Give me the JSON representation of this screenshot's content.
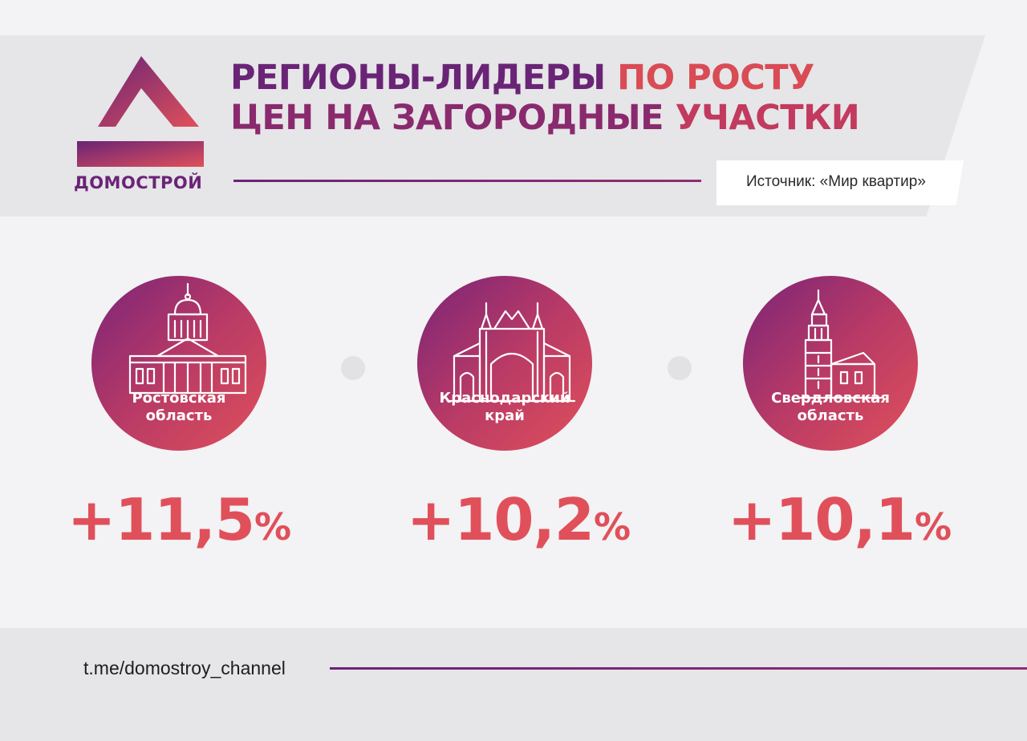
{
  "brand": {
    "name": "ДОМОСТРОЙ",
    "colors": {
      "purple": "#6a2476",
      "red": "#e0505a"
    }
  },
  "title": {
    "line1_part1": "РЕГИОНЫ-ЛИДЕРЫ",
    "line1_part2": "ПО РОСТУ",
    "line2_part1": "ЦЕН НА ЗАГОРОДНЫЕ",
    "line2_part2": "УЧАСТКИ"
  },
  "source": "Источник: «Мир квартир»",
  "footer": {
    "link": "t.me/domostroy_channel"
  },
  "chart_data": {
    "type": "table",
    "title": "РЕГИОНЫ-ЛИДЕРЫ ПО РОСТУ ЦЕН НА ЗАГОРОДНЫЕ УЧАСТКИ",
    "categories": [
      "Ростовская область",
      "Краснодарский край",
      "Свердловская область"
    ],
    "values": [
      11.5,
      10.2,
      10.1
    ],
    "unit": "%",
    "items": [
      {
        "label": "Ростовская\nобласть",
        "value_text": "+11,5",
        "pct": "%",
        "icon": "cathedral-icon"
      },
      {
        "label": "Краснодарский\nкрай",
        "value_text": "+10,2",
        "pct": "%",
        "icon": "arch-gate-icon"
      },
      {
        "label": "Свердловская\nобласть",
        "value_text": "+10,1",
        "pct": "%",
        "icon": "leaning-tower-icon"
      }
    ]
  }
}
